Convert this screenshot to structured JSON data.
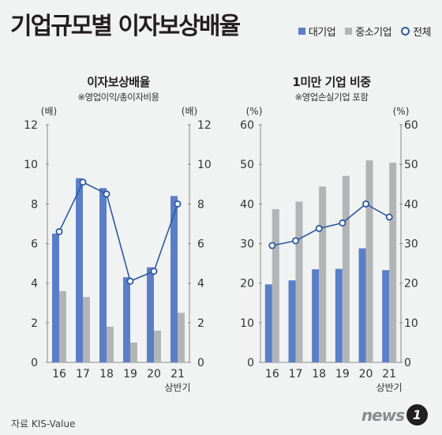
{
  "headline": "기업규모별 이자보상배율",
  "legend": [
    {
      "label": "대기업",
      "color": "#5a7fc8",
      "marker": "square"
    },
    {
      "label": "중소기업",
      "color": "#b3b4b6",
      "marker": "square"
    },
    {
      "label": "전체",
      "color": "#2c5aa0",
      "marker": "circle"
    }
  ],
  "source": "자료 KIS-Value",
  "logo": {
    "word": "news",
    "badge": "1"
  },
  "chart_data": [
    {
      "type": "bar",
      "title": "이자보상배율",
      "subtitle": "※영업이익/총이자비용",
      "unit_left": "(배)",
      "unit_right": "(배)",
      "categories": [
        "16",
        "17",
        "18",
        "19",
        "20",
        "21"
      ],
      "category_note": "상반기",
      "ylim": [
        0,
        12
      ],
      "yticks": [
        0,
        2,
        4,
        6,
        8,
        10,
        12
      ],
      "series": [
        {
          "name": "대기업",
          "values": [
            6.5,
            9.3,
            8.8,
            4.3,
            4.8,
            8.4
          ],
          "color": "#5a7fc8"
        },
        {
          "name": "중소기업",
          "values": [
            3.6,
            3.3,
            1.8,
            1.0,
            1.6,
            2.5
          ],
          "color": "#b3b4b6"
        },
        {
          "name": "전체",
          "values": [
            6.6,
            9.1,
            8.5,
            4.1,
            4.6,
            8.0
          ],
          "color": "#2c5aa0",
          "kind": "line"
        }
      ]
    },
    {
      "type": "bar",
      "title": "1미만 기업 비중",
      "subtitle": "※영업손실기업 포함",
      "unit_left": "(%)",
      "unit_right": "(%)",
      "categories": [
        "16",
        "17",
        "18",
        "19",
        "20",
        "21"
      ],
      "category_note": "상반기",
      "ylim": [
        0,
        60
      ],
      "yticks": [
        0,
        10,
        20,
        30,
        40,
        50,
        60
      ],
      "series": [
        {
          "name": "대기업",
          "values": [
            19.7,
            20.7,
            23.5,
            23.6,
            28.8,
            23.3
          ],
          "color": "#5a7fc8"
        },
        {
          "name": "중소기업",
          "values": [
            38.7,
            40.6,
            44.4,
            47.1,
            51.0,
            50.4
          ],
          "color": "#b3b4b6"
        },
        {
          "name": "전체",
          "values": [
            29.5,
            30.7,
            33.8,
            35.2,
            40.0,
            36.7
          ],
          "color": "#2c5aa0",
          "kind": "line"
        }
      ]
    }
  ]
}
